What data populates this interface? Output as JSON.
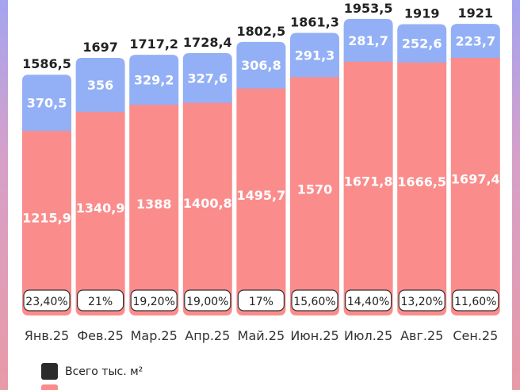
{
  "chart_data": {
    "type": "bar",
    "stacked": true,
    "categories": [
      "Янв.25",
      "Фев.25",
      "Мар.25",
      "Апр.25",
      "Май.25",
      "Июн.25",
      "Июл.25",
      "Авг.25",
      "Сен.25"
    ],
    "series": [
      {
        "color": "#fb8c8c",
        "values": [
          1215.9,
          1340.9,
          1388,
          1400.8,
          1495.7,
          1570,
          1671.8,
          1666.5,
          1697.4
        ],
        "labels": [
          "1215,9",
          "1340,9",
          "1388",
          "1400,8",
          "1495,7",
          "1570",
          "1671,8",
          "1666,5",
          "1697,4"
        ]
      },
      {
        "color": "#93b0f6",
        "values": [
          370.5,
          356,
          329.2,
          327.6,
          306.8,
          291.3,
          281.7,
          252.6,
          223.7
        ],
        "labels": [
          "370,5",
          "356",
          "329,2",
          "327,6",
          "306,8",
          "291,3",
          "281,7",
          "252,6",
          "223,7"
        ]
      }
    ],
    "totals": [
      1586.5,
      1697,
      1717.2,
      1728.4,
      1802.5,
      1861.3,
      1953.5,
      1919,
      1921
    ],
    "total_labels": [
      "1586,5",
      "1697",
      "1717,2",
      "1728,4",
      "1802,5",
      "1861,3",
      "1953,5",
      "1919",
      "1921"
    ],
    "share": [
      23.4,
      21,
      19.2,
      19.0,
      17,
      15.6,
      14.4,
      13.2,
      11.6
    ],
    "share_labels": [
      "23,40%",
      "21%",
      "19,20%",
      "19,00%",
      "17%",
      "15,60%",
      "14,40%",
      "13,20%",
      "11,60%"
    ],
    "grid": false
  },
  "legend": {
    "items": [
      {
        "label": "Всего тыс. м²",
        "color": "#2b2b2b"
      },
      {
        "label": "",
        "color": "#fb8c8c"
      }
    ]
  }
}
